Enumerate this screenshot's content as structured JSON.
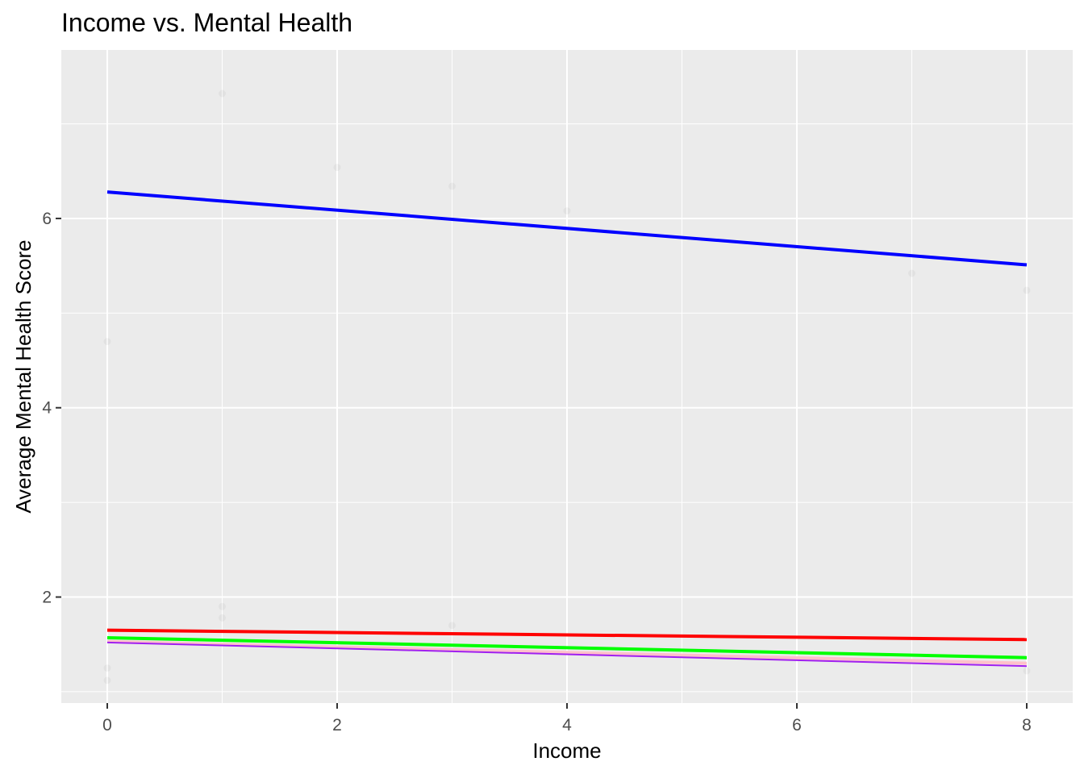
{
  "chart_data": {
    "type": "line",
    "title": "Income vs. Mental Health",
    "xlabel": "Income",
    "ylabel": "Average Mental Health Score",
    "xlim": [
      -0.4,
      8.4
    ],
    "ylim": [
      0.88,
      7.78
    ],
    "x_ticks": [
      0,
      2,
      4,
      6,
      8
    ],
    "y_ticks": [
      2,
      4,
      6
    ],
    "grid": true,
    "legend": "none",
    "panel_background": "#ebebeb",
    "grid_color": "#ffffff",
    "series": [
      {
        "color": "#0000ff",
        "x": [
          0,
          8
        ],
        "values": [
          6.28,
          5.51
        ]
      },
      {
        "color": "#ff0000",
        "x": [
          0,
          8
        ],
        "values": [
          1.65,
          1.55
        ]
      },
      {
        "color": "#ffc0cb",
        "x": [
          0,
          8
        ],
        "values": [
          1.53,
          1.3
        ]
      },
      {
        "color": "#a020f0",
        "x": [
          0,
          8
        ],
        "values": [
          1.52,
          1.27
        ]
      },
      {
        "color": "#00ff00",
        "x": [
          0,
          8
        ],
        "values": [
          1.57,
          1.36
        ]
      }
    ],
    "points": [
      {
        "x": 1,
        "y": 7.32
      },
      {
        "x": 2,
        "y": 6.54
      },
      {
        "x": 3,
        "y": 6.34
      },
      {
        "x": 4,
        "y": 6.08
      },
      {
        "x": 0,
        "y": 4.7
      },
      {
        "x": 7,
        "y": 5.42
      },
      {
        "x": 8,
        "y": 5.24
      },
      {
        "x": 1,
        "y": 1.9
      },
      {
        "x": 1,
        "y": 1.78
      },
      {
        "x": 0,
        "y": 1.25
      },
      {
        "x": 0,
        "y": 1.12
      },
      {
        "x": 3,
        "y": 1.7
      },
      {
        "x": 8,
        "y": 1.22
      }
    ]
  }
}
